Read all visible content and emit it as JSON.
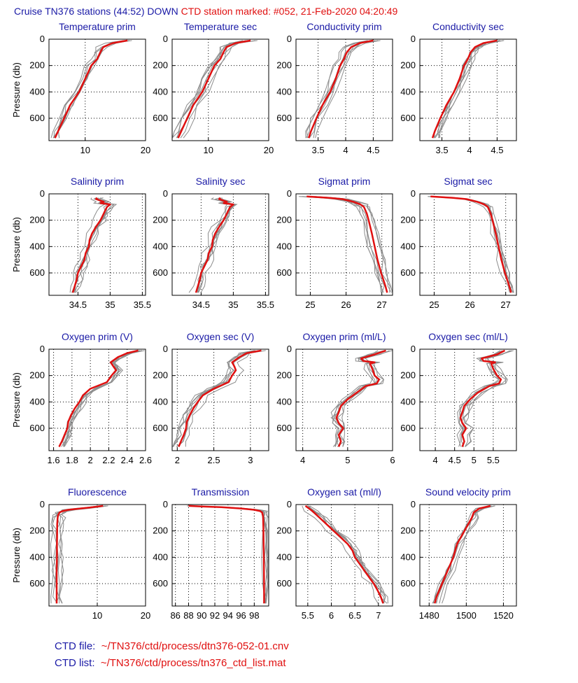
{
  "header": {
    "cruise_text": "Cruise TN376 stations (44:52) DOWN",
    "marked_text": "CTD station marked: #052, 21-Feb-2020 04:20:49"
  },
  "footer": {
    "file_label": "CTD file:",
    "file_value": "~/TN376/ctd/process/dtn376-052-01.cnv",
    "list_label": "CTD list:",
    "list_value": "~/TN376/ctd/process/tn376_ctd_list.mat"
  },
  "colors": {
    "title": "#1a1aa6",
    "marked": "#e01010",
    "others": "#8c8c8c"
  },
  "chart_data": [
    {
      "type": "line",
      "title": "Temperature prim",
      "ylabel": "Pressure (db)",
      "xlim": [
        4,
        20
      ],
      "ylim": [
        0,
        770
      ],
      "y_reversed": true,
      "xticks": [
        10,
        20
      ],
      "yticks": [
        0,
        200,
        400,
        600
      ],
      "grid": true,
      "series": [
        {
          "marked": true,
          "y": [
            10,
            30,
            60,
            100,
            150,
            200,
            300,
            400,
            500,
            600,
            700,
            750
          ],
          "x": [
            17,
            14.5,
            13,
            12.5,
            12,
            11,
            10,
            9,
            7.5,
            6.5,
            5.5,
            5
          ]
        }
      ]
    },
    {
      "type": "line",
      "title": "Temperature sec",
      "ylabel": "",
      "xlim": [
        4,
        20
      ],
      "ylim": [
        0,
        770
      ],
      "y_reversed": true,
      "xticks": [
        10,
        20
      ],
      "yticks": [
        0,
        200,
        400,
        600
      ],
      "grid": true,
      "series": [
        {
          "marked": true,
          "y": [
            10,
            30,
            60,
            100,
            150,
            200,
            300,
            400,
            500,
            600,
            700,
            750
          ],
          "x": [
            17,
            14.5,
            13,
            12.5,
            12,
            11,
            10,
            9,
            7.5,
            6.5,
            5.5,
            5
          ]
        }
      ]
    },
    {
      "type": "line",
      "title": "Conductivity prim",
      "ylabel": "",
      "xlim": [
        3.1,
        4.85
      ],
      "ylim": [
        0,
        770
      ],
      "y_reversed": true,
      "xticks": [
        3.5,
        4,
        4.5
      ],
      "yticks": [
        0,
        200,
        400,
        600
      ],
      "grid": true,
      "series": [
        {
          "marked": true,
          "y": [
            10,
            30,
            60,
            100,
            150,
            200,
            300,
            400,
            500,
            600,
            700,
            750
          ],
          "x": [
            4.5,
            4.25,
            4.1,
            4.02,
            3.97,
            3.9,
            3.82,
            3.72,
            3.58,
            3.47,
            3.37,
            3.33
          ]
        }
      ]
    },
    {
      "type": "line",
      "title": "Conductivity sec",
      "ylabel": "",
      "xlim": [
        3.1,
        4.85
      ],
      "ylim": [
        0,
        770
      ],
      "y_reversed": true,
      "xticks": [
        3.5,
        4,
        4.5
      ],
      "yticks": [
        0,
        200,
        400,
        600
      ],
      "grid": true,
      "series": [
        {
          "marked": true,
          "y": [
            10,
            30,
            60,
            100,
            150,
            200,
            300,
            400,
            500,
            600,
            700,
            750
          ],
          "x": [
            4.5,
            4.25,
            4.1,
            4.02,
            3.97,
            3.9,
            3.82,
            3.72,
            3.58,
            3.47,
            3.37,
            3.33
          ]
        }
      ]
    },
    {
      "type": "line",
      "title": "Salinity prim",
      "ylabel": "Pressure (db)",
      "xlim": [
        34.05,
        35.55
      ],
      "ylim": [
        0,
        770
      ],
      "y_reversed": true,
      "xticks": [
        34.5,
        35,
        35.5
      ],
      "yticks": [
        0,
        200,
        400,
        600
      ],
      "grid": true,
      "series": [
        {
          "marked": true,
          "y": [
            30,
            40,
            60,
            70,
            80,
            100,
            130,
            170,
            200,
            250,
            300,
            350,
            400,
            450,
            500,
            550,
            600,
            650,
            700,
            750
          ],
          "x": [
            34.8,
            34.78,
            34.9,
            34.85,
            35.0,
            34.95,
            34.92,
            34.88,
            34.85,
            34.78,
            34.72,
            34.68,
            34.67,
            34.62,
            34.6,
            34.55,
            34.5,
            34.48,
            34.45,
            34.42
          ]
        }
      ]
    },
    {
      "type": "line",
      "title": "Salinity sec",
      "ylabel": "",
      "xlim": [
        34.05,
        35.55
      ],
      "ylim": [
        0,
        770
      ],
      "y_reversed": true,
      "xticks": [
        34.5,
        35,
        35.5
      ],
      "yticks": [
        0,
        200,
        400,
        600
      ],
      "grid": true,
      "series": [
        {
          "marked": true,
          "y": [
            30,
            40,
            60,
            70,
            80,
            100,
            130,
            170,
            200,
            250,
            300,
            350,
            400,
            450,
            500,
            550,
            600,
            650,
            700,
            750
          ],
          "x": [
            34.8,
            34.78,
            34.9,
            34.85,
            35.0,
            34.95,
            34.92,
            34.88,
            34.85,
            34.78,
            34.72,
            34.68,
            34.67,
            34.62,
            34.6,
            34.55,
            34.5,
            34.48,
            34.45,
            34.42
          ]
        }
      ]
    },
    {
      "type": "line",
      "title": "Sigmat prim",
      "ylabel": "",
      "xlim": [
        24.6,
        27.3
      ],
      "ylim": [
        0,
        770
      ],
      "y_reversed": true,
      "xticks": [
        25,
        26,
        27
      ],
      "yticks": [
        0,
        200,
        400,
        600
      ],
      "grid": true,
      "series": [
        {
          "marked": true,
          "y": [
            20,
            30,
            40,
            60,
            80,
            100,
            150,
            200,
            300,
            400,
            500,
            600,
            700,
            750
          ],
          "x": [
            24.9,
            25.5,
            25.9,
            26.2,
            26.4,
            26.5,
            26.58,
            26.63,
            26.72,
            26.8,
            26.88,
            26.98,
            27.1,
            27.15
          ]
        }
      ]
    },
    {
      "type": "line",
      "title": "Sigmat sec",
      "ylabel": "",
      "xlim": [
        24.6,
        27.3
      ],
      "ylim": [
        0,
        770
      ],
      "y_reversed": true,
      "xticks": [
        25,
        26,
        27
      ],
      "yticks": [
        0,
        200,
        400,
        600
      ],
      "grid": true,
      "series": [
        {
          "marked": true,
          "y": [
            20,
            30,
            40,
            60,
            80,
            100,
            150,
            200,
            300,
            400,
            500,
            600,
            700,
            750
          ],
          "x": [
            24.9,
            25.5,
            25.9,
            26.2,
            26.4,
            26.5,
            26.58,
            26.63,
            26.72,
            26.8,
            26.88,
            26.98,
            27.1,
            27.15
          ]
        }
      ]
    },
    {
      "type": "line",
      "title": "Oxygen prim (V)",
      "ylabel": "Pressure (db)",
      "xlim": [
        1.55,
        2.6
      ],
      "ylim": [
        0,
        770
      ],
      "y_reversed": true,
      "xticks": [
        1.6,
        1.8,
        2,
        2.2,
        2.4,
        2.6
      ],
      "yticks": [
        0,
        200,
        400,
        600
      ],
      "grid": true,
      "series": [
        {
          "marked": true,
          "y": [
            10,
            30,
            60,
            100,
            130,
            160,
            200,
            250,
            300,
            350,
            400,
            450,
            500,
            550,
            600,
            650,
            700,
            740
          ],
          "x": [
            2.52,
            2.4,
            2.3,
            2.22,
            2.25,
            2.28,
            2.23,
            2.18,
            2.0,
            1.92,
            1.88,
            1.83,
            1.79,
            1.76,
            1.75,
            1.72,
            1.69,
            1.66
          ]
        }
      ]
    },
    {
      "type": "line",
      "title": "Oxygen sec (V)",
      "ylabel": "",
      "xlim": [
        1.93,
        3.25
      ],
      "ylim": [
        0,
        770
      ],
      "y_reversed": true,
      "xticks": [
        2,
        2.5,
        3
      ],
      "yticks": [
        0,
        200,
        400,
        600
      ],
      "grid": true,
      "series": [
        {
          "marked": true,
          "y": [
            10,
            30,
            60,
            100,
            130,
            160,
            200,
            250,
            300,
            350,
            400,
            450,
            500,
            550,
            600,
            650,
            700,
            740
          ],
          "x": [
            3.15,
            2.95,
            2.85,
            2.75,
            2.78,
            2.8,
            2.75,
            2.7,
            2.5,
            2.35,
            2.28,
            2.22,
            2.17,
            2.13,
            2.12,
            2.09,
            2.05,
            2.02
          ]
        }
      ]
    },
    {
      "type": "line",
      "title": "Oxygen prim (ml/L)",
      "ylabel": "",
      "xlim": [
        3.85,
        6
      ],
      "ylim": [
        0,
        770
      ],
      "y_reversed": true,
      "xticks": [
        4,
        5,
        6
      ],
      "yticks": [
        0,
        200,
        400,
        600
      ],
      "grid": true,
      "series": [
        {
          "marked": true,
          "y": [
            10,
            40,
            70,
            90,
            100,
            110,
            150,
            200,
            230,
            260,
            280,
            330,
            380,
            430,
            480,
            520,
            560,
            600,
            650,
            700,
            740
          ],
          "x": [
            5.85,
            5.6,
            5.3,
            5.35,
            5.6,
            5.5,
            5.55,
            5.6,
            5.7,
            5.65,
            5.4,
            5.2,
            5.0,
            4.85,
            4.8,
            4.75,
            4.8,
            4.9,
            4.8,
            4.85,
            4.8
          ]
        }
      ]
    },
    {
      "type": "line",
      "title": "Oxygen sec (ml/L)",
      "ylabel": "",
      "xlim": [
        3.6,
        6.1
      ],
      "ylim": [
        0,
        770
      ],
      "y_reversed": true,
      "xticks": [
        4,
        4.5,
        5,
        5.5
      ],
      "yticks": [
        0,
        200,
        400,
        600
      ],
      "grid": true,
      "series": [
        {
          "marked": true,
          "y": [
            10,
            40,
            70,
            90,
            100,
            110,
            150,
            200,
            230,
            260,
            280,
            330,
            380,
            430,
            480,
            520,
            560,
            600,
            650,
            700,
            740
          ],
          "x": [
            5.8,
            5.6,
            5.2,
            5.25,
            5.55,
            5.45,
            5.5,
            5.6,
            5.7,
            5.65,
            5.4,
            5.1,
            4.9,
            4.75,
            4.7,
            4.65,
            4.7,
            4.8,
            4.7,
            4.75,
            4.7
          ]
        }
      ]
    },
    {
      "type": "line",
      "title": "Fluorescence",
      "ylabel": "Pressure (db)",
      "xlim": [
        0,
        20
      ],
      "ylim": [
        0,
        770
      ],
      "y_reversed": true,
      "xticks": [
        10,
        20
      ],
      "yticks": [
        0,
        200,
        400,
        600
      ],
      "grid": true,
      "series": [
        {
          "marked": true,
          "y": [
            10,
            20,
            30,
            40,
            50,
            60,
            80,
            100,
            150,
            200,
            300,
            400,
            500,
            600,
            700,
            750
          ],
          "x": [
            11.2,
            9,
            6.5,
            4,
            2.8,
            2.2,
            1.9,
            1.8,
            1.7,
            1.7,
            1.65,
            1.65,
            1.6,
            1.6,
            1.6,
            1.6
          ]
        }
      ]
    },
    {
      "type": "line",
      "title": "Transmission",
      "ylabel": "",
      "xlim": [
        85.5,
        100.2
      ],
      "ylim": [
        0,
        770
      ],
      "y_reversed": true,
      "xticks": [
        86,
        88,
        90,
        92,
        94,
        96,
        98
      ],
      "yticks": [
        0,
        200,
        400,
        600
      ],
      "grid": true,
      "series": [
        {
          "marked": true,
          "y": [
            10,
            15,
            20,
            30,
            40,
            50,
            60,
            80,
            100,
            200,
            400,
            600,
            750
          ],
          "x": [
            88,
            90,
            93,
            96,
            98,
            98.9,
            99.2,
            99.3,
            99.35,
            99.4,
            99.45,
            99.5,
            99.5
          ]
        }
      ]
    },
    {
      "type": "line",
      "title": "Oxygen sat (ml/l)",
      "ylabel": "",
      "xlim": [
        5.25,
        7.3
      ],
      "ylim": [
        0,
        770
      ],
      "y_reversed": true,
      "xticks": [
        5.5,
        6,
        6.5,
        7
      ],
      "yticks": [
        0,
        200,
        400,
        600
      ],
      "grid": true,
      "series": [
        {
          "marked": true,
          "y": [
            10,
            50,
            100,
            150,
            200,
            250,
            300,
            350,
            400,
            450,
            500,
            550,
            600,
            650,
            700,
            750
          ],
          "x": [
            5.45,
            5.6,
            5.75,
            5.9,
            6.05,
            6.2,
            6.35,
            6.45,
            6.5,
            6.6,
            6.7,
            6.8,
            6.9,
            6.98,
            7.05,
            7.1
          ]
        }
      ]
    },
    {
      "type": "line",
      "title": "Sound velocity prim",
      "ylabel": "",
      "xlim": [
        1475,
        1527
      ],
      "ylim": [
        0,
        770
      ],
      "y_reversed": true,
      "xticks": [
        1480,
        1500,
        1520
      ],
      "yticks": [
        0,
        200,
        400,
        600
      ],
      "grid": true,
      "series": [
        {
          "marked": true,
          "y": [
            10,
            30,
            60,
            100,
            150,
            200,
            250,
            300,
            400,
            500,
            600,
            700,
            750
          ],
          "x": [
            1513,
            1507,
            1504,
            1503,
            1501,
            1499,
            1497,
            1495,
            1493,
            1490,
            1487,
            1484,
            1483
          ]
        }
      ]
    }
  ]
}
